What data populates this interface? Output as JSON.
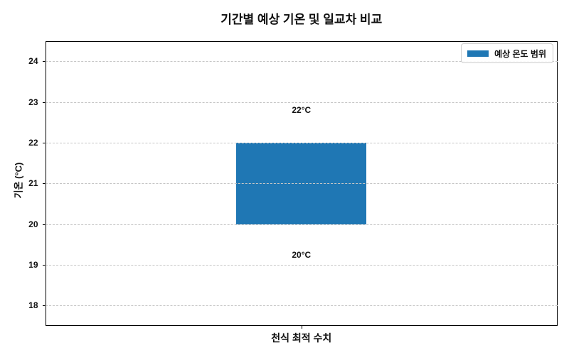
{
  "chart_data": {
    "type": "bar",
    "title": "기간별 예상 기온 및 일교차 비교",
    "categories": [
      "천식 최적 수치"
    ],
    "series": [
      {
        "name": "예상 온도 범위",
        "low": 20,
        "high": 22
      }
    ],
    "ylabel": "기온 (°C)",
    "yticks": [
      18,
      19,
      20,
      21,
      22,
      23,
      24
    ],
    "ylim": [
      17.5,
      24.5
    ],
    "grid": "horizontal-dashed",
    "legend_position": "upper-right",
    "bar_color": "#1f77b4",
    "annotations": [
      {
        "text": "22°C",
        "value": 22,
        "position": "above-bar"
      },
      {
        "text": "20°C",
        "value": 20,
        "position": "below-bar"
      }
    ]
  }
}
